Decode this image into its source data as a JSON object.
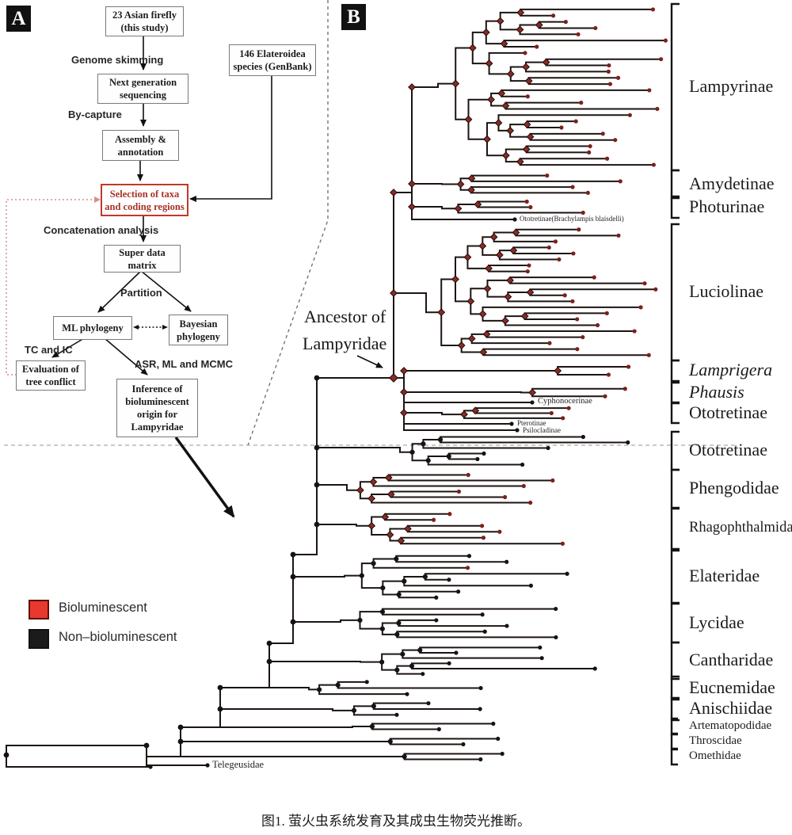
{
  "figure": {
    "caption": "图1. 萤火虫系统发育及其成虫生物荧光推断。"
  },
  "colors": {
    "bioluminescent": "#e8392f",
    "non_bioluminescent": "#1b1b1b",
    "node_red": "#8b2a22",
    "branch": "#1c1412",
    "highlight_box": "#c0392b",
    "feedback_dotted": "#d98c8c"
  },
  "panelA": {
    "label": "A",
    "boxes": [
      {
        "text": "23 Asian firefly\n(this study)"
      },
      {
        "text": "146 Elateroidea\nspecies (GenBank)"
      },
      {
        "text": "Next generation\nsequencing"
      },
      {
        "text": "Assembly &\nannotation"
      },
      {
        "text": "Selection of taxa\nand coding regions",
        "highlight": true
      },
      {
        "text": "Super data\nmatrix"
      },
      {
        "text": "ML phylogeny"
      },
      {
        "text": "Bayesian\nphylogeny"
      },
      {
        "text": "Evaluation of\ntree conflict"
      },
      {
        "text": "Inference of\nbioluminescent\norigin for\nLampyridae"
      }
    ],
    "edge_labels": [
      {
        "text": "Genome skimming"
      },
      {
        "text": "By-capture"
      },
      {
        "text": "Concatenation analysis"
      },
      {
        "text": "Partition"
      },
      {
        "text": "TC and IC"
      },
      {
        "text": "ASR, ML and MCMC"
      }
    ]
  },
  "legend": {
    "items": [
      {
        "label": "Bioluminescent",
        "color": "#e8392f"
      },
      {
        "label": "Non–bioluminescent",
        "color": "#1b1b1b"
      }
    ]
  },
  "panelB": {
    "label": "B",
    "ancestor_note": {
      "line1": "Ancestor of",
      "line2": "Lampyridae"
    },
    "clades": [
      {
        "name": "Lampyrinae",
        "bioluminescent": true
      },
      {
        "name": "Amydetinae",
        "bioluminescent": true
      },
      {
        "name": "Photurinae",
        "bioluminescent": true
      },
      {
        "name": "Luciolinae",
        "bioluminescent": true
      },
      {
        "name": "Lamprigera",
        "bioluminescent": true,
        "italic": true
      },
      {
        "name": "Phausis",
        "bioluminescent": true,
        "italic": true
      },
      {
        "name": "Ototretinae",
        "bioluminescent": true
      },
      {
        "name": "Ototretinae",
        "bioluminescent": false
      },
      {
        "name": "Phengodidae",
        "bioluminescent": true
      },
      {
        "name": "Rhagophthalmidae",
        "bioluminescent": true
      },
      {
        "name": "Elateridae",
        "bioluminescent": false
      },
      {
        "name": "Lycidae",
        "bioluminescent": false
      },
      {
        "name": "Cantharidae",
        "bioluminescent": false
      },
      {
        "name": "Eucnemidae",
        "bioluminescent": false
      },
      {
        "name": "Anischiidae",
        "bioluminescent": false
      },
      {
        "name": "Artematopodidae",
        "bioluminescent": false
      },
      {
        "name": "Throscidae",
        "bioluminescent": false
      },
      {
        "name": "Omethidae",
        "bioluminescent": false
      }
    ],
    "annotations": [
      {
        "text": "Ototretinae(Brachylampis blaisdelli)"
      },
      {
        "text": "Cyphonocerinae"
      },
      {
        "text": "Pterotinae"
      },
      {
        "text": "Psilocladinae"
      },
      {
        "text": "Telegeusidae"
      }
    ]
  }
}
